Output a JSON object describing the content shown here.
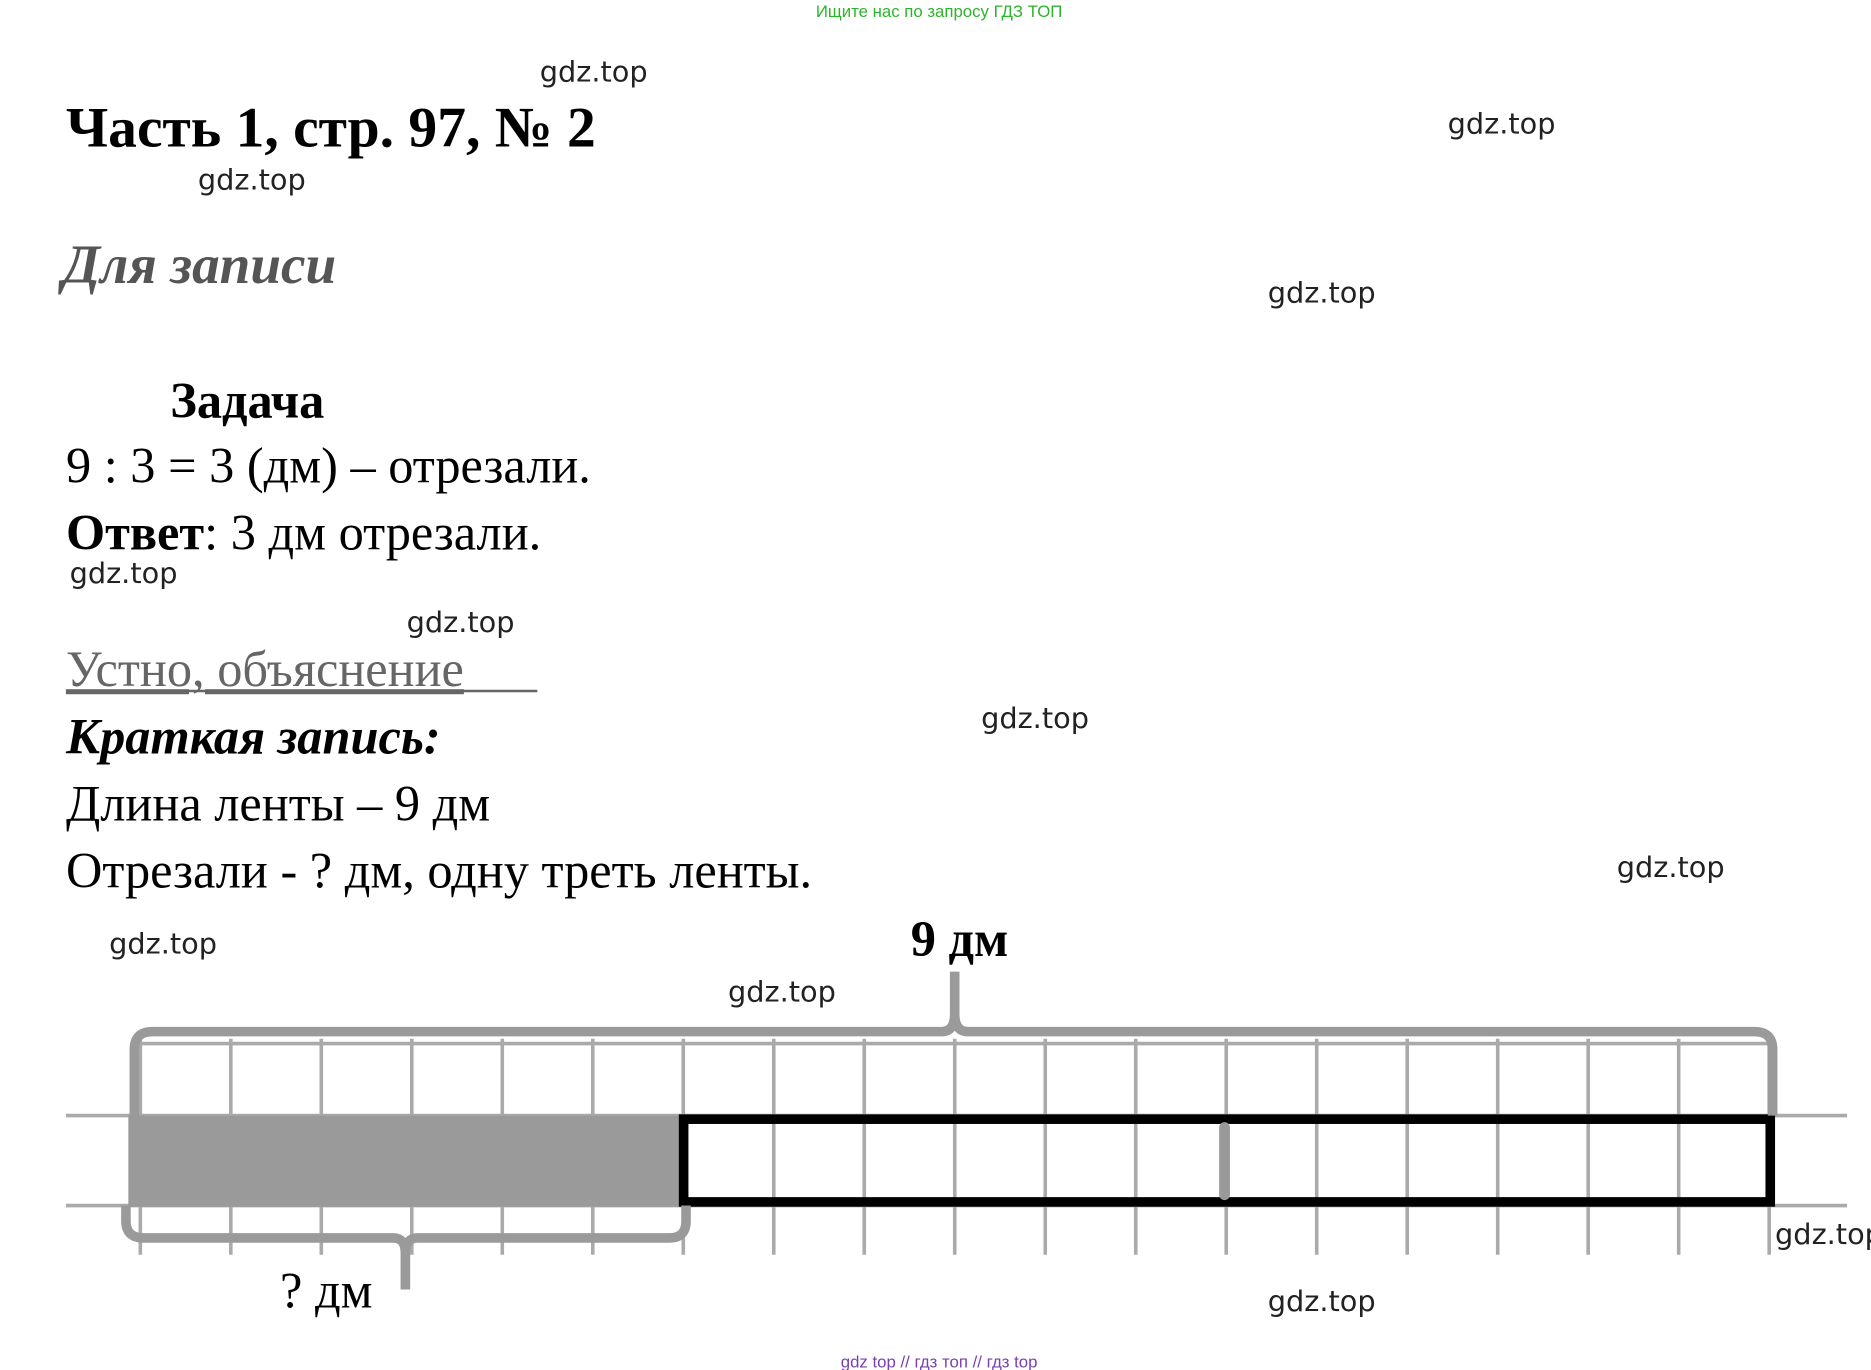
{
  "header_note": "Ищите нас по запросу ГДЗ ТОП",
  "title": "Часть 1, стр. 97, № 2",
  "section_record": "Для записи",
  "task_heading": "Задача",
  "solution": "9 : 3 = 3 (дм) – отрезали.",
  "answer_label": "Ответ",
  "answer_text": ": 3 дм отрезали.",
  "oral_heading": "Устно, объяснение",
  "short_heading": "Краткая запись:",
  "short_lines": [
    "Длина ленты – 9 дм",
    "Отрезали - ? дм, одну треть ленты."
  ],
  "diagram": {
    "total_label": "9 дм",
    "part_label": "? дм"
  },
  "watermark": "gdz.top",
  "footer": [
    "gdz top",
    "//",
    "гдз топ",
    "//",
    "гдз top"
  ]
}
